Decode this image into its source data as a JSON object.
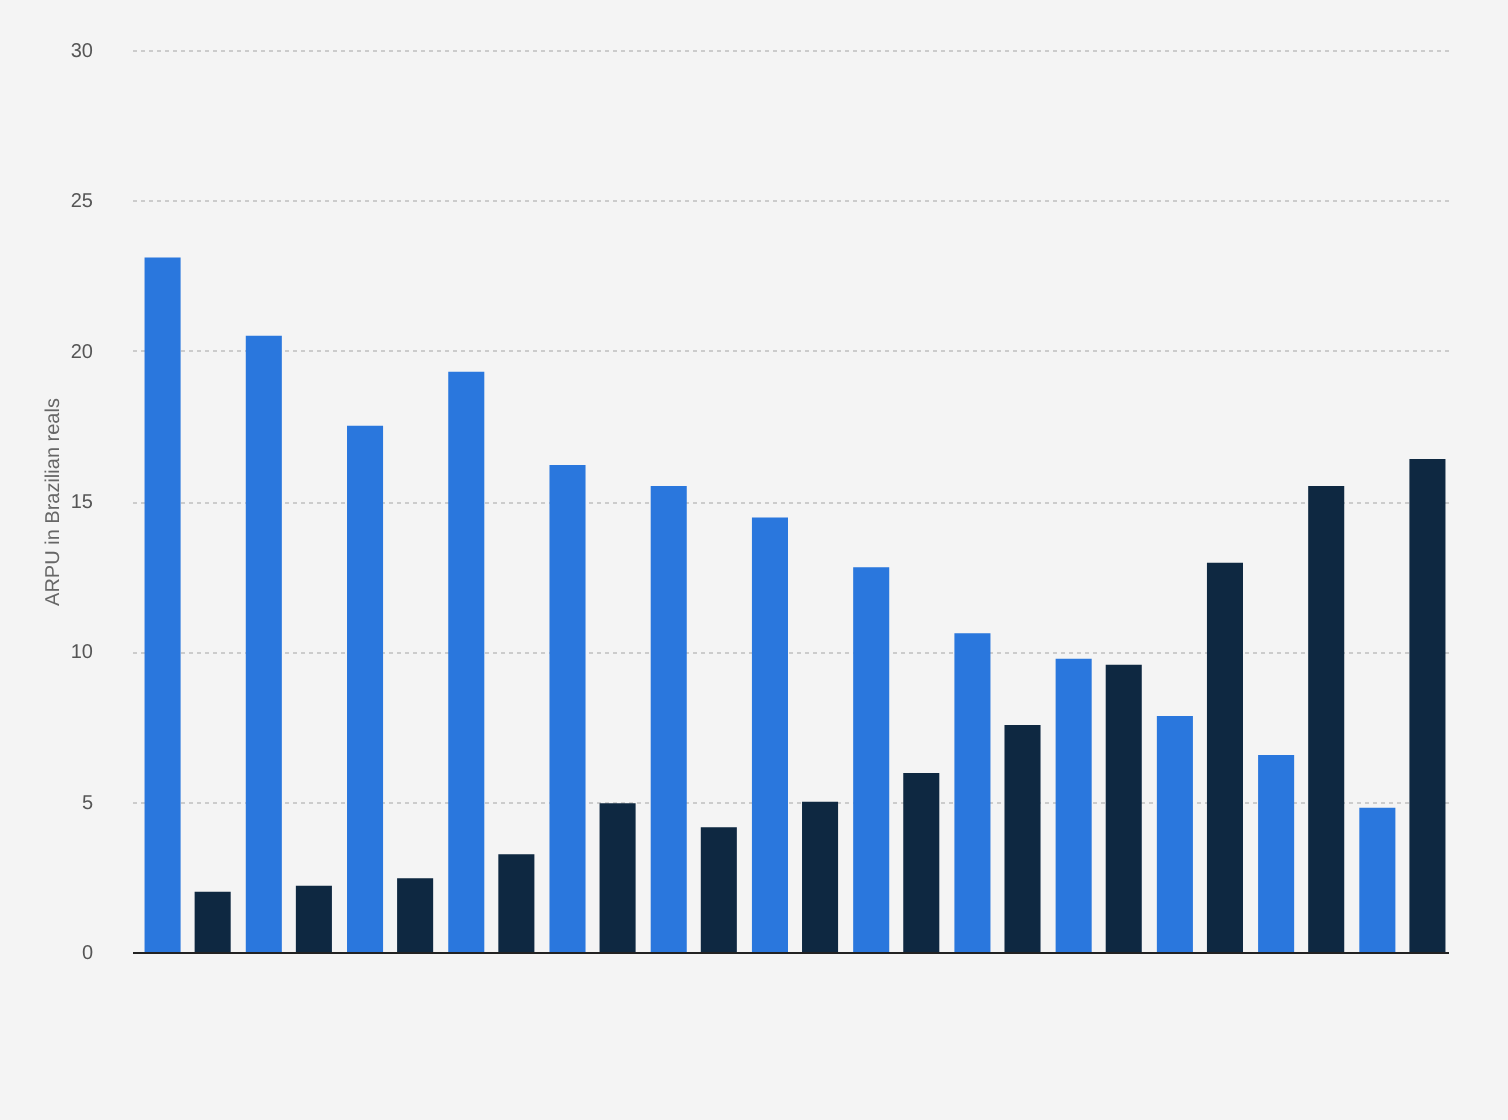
{
  "chart_data": {
    "type": "bar",
    "ylabel": "ARPU in Brazilian reals",
    "categories": [
      null,
      null,
      null,
      null,
      null,
      null,
      null,
      null,
      null,
      null,
      null,
      null,
      null
    ],
    "series": [
      {
        "color": "#2a77dd",
        "values": [
          23.1,
          20.5,
          17.5,
          19.3,
          16.2,
          15.5,
          14.45,
          12.8,
          10.6,
          9.75,
          7.85,
          6.55,
          4.8
        ]
      },
      {
        "color": "#0e2841",
        "values": [
          2.0,
          2.2,
          2.45,
          3.25,
          4.95,
          4.15,
          5.0,
          5.95,
          7.55,
          9.55,
          12.95,
          15.5,
          16.4
        ]
      }
    ],
    "ylim": [
      0,
      30
    ],
    "yticks": [
      0,
      5,
      10,
      15,
      20,
      25,
      30
    ],
    "grid": "y",
    "tick_labels": "y",
    "legend": false
  }
}
